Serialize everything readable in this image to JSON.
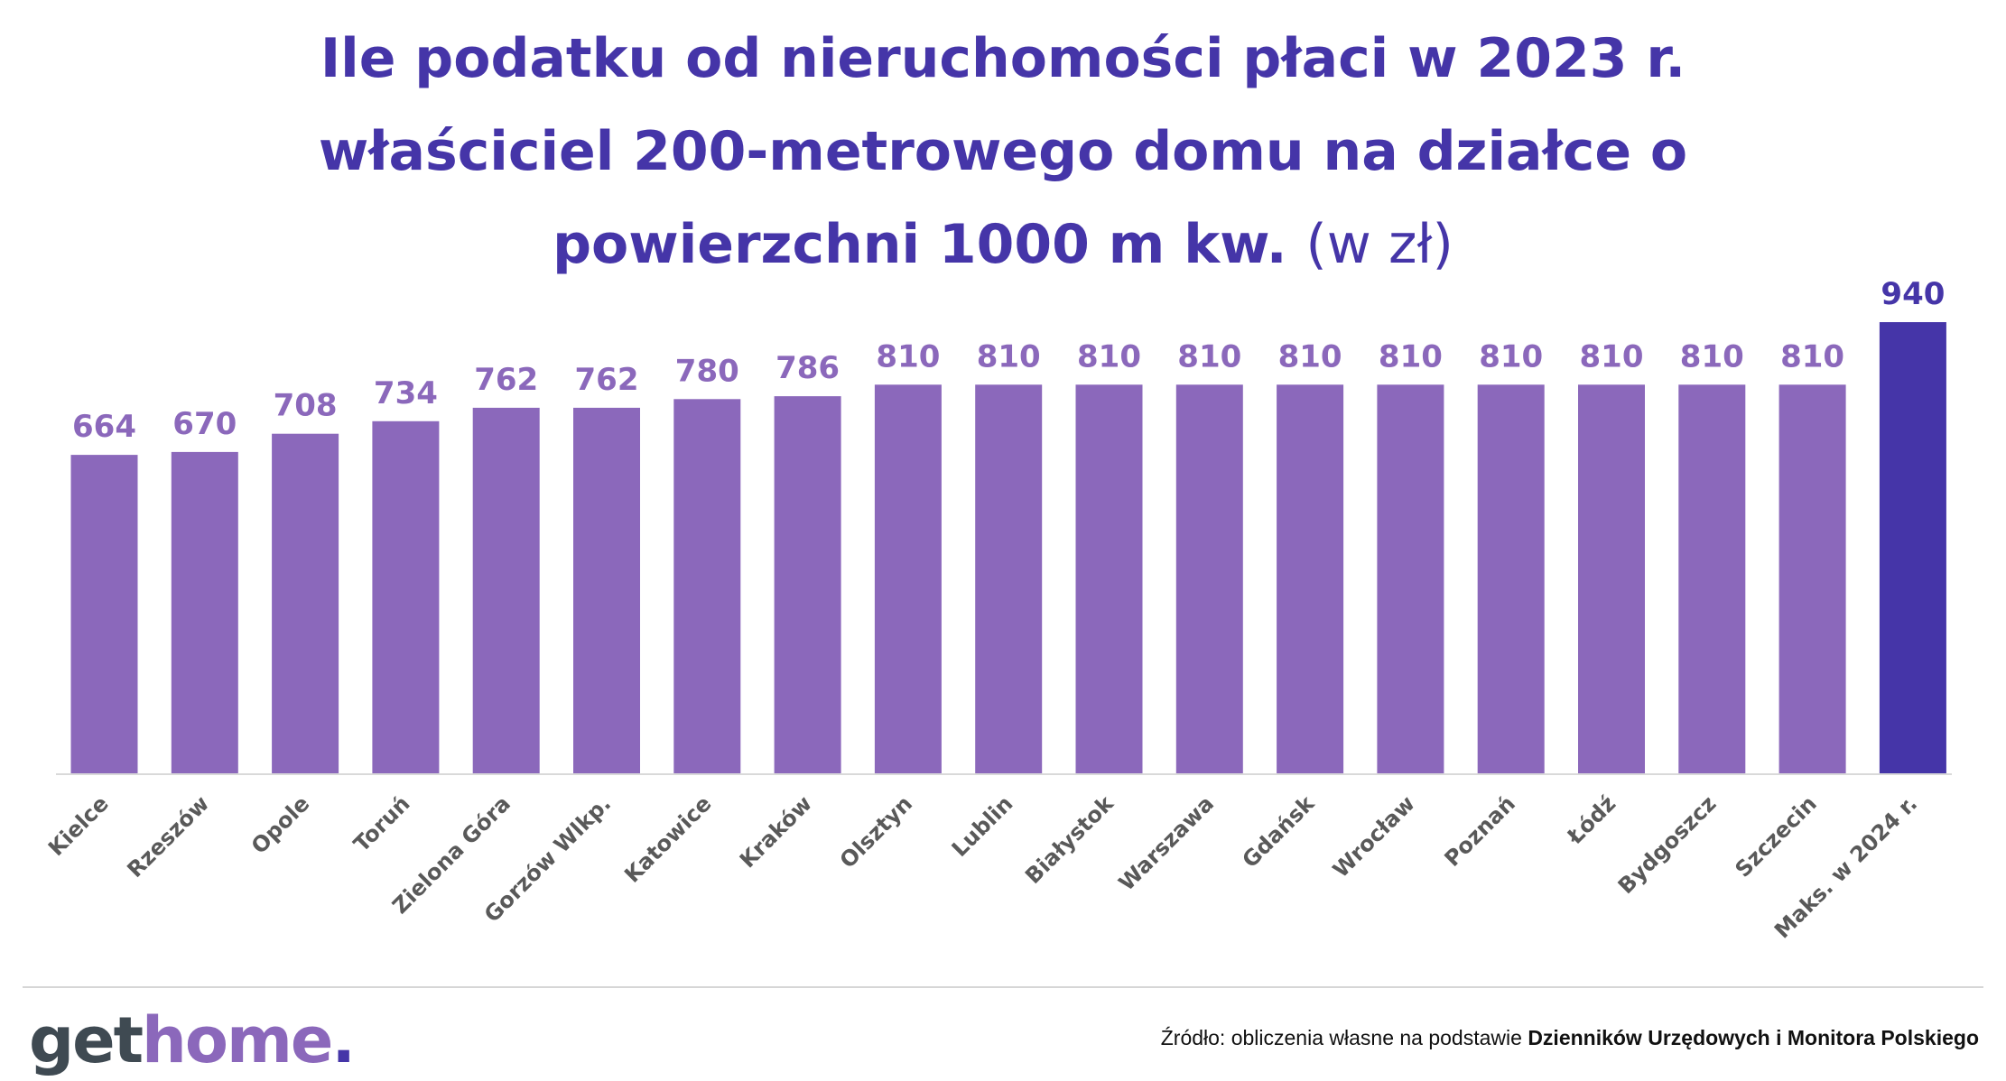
{
  "title": {
    "line1": "Ile podatku od nieruchomości płaci w 2023 r.",
    "line2": "właściciel 200-metrowego domu na działce o",
    "line3": "powierzchni 1000 m kw.",
    "unit": "(w zł)"
  },
  "logo": {
    "get": "get",
    "home": "home",
    "dot": "."
  },
  "source": {
    "prefix": "Źródło: obliczenia własne na podstawie ",
    "bold": "Dzienników Urzędowych i Monitora Polskiego"
  },
  "colors": {
    "title": "#4535a8",
    "bar": "#8b68bb",
    "bar_highlight": "#4535a8",
    "value_label": "#8b68bb",
    "value_label_highlight": "#4535a8",
    "category_label": "#595959"
  },
  "chart_data": {
    "type": "bar",
    "title": "Ile podatku od nieruchomości płaci w 2023 r. właściciel 200-metrowego domu na działce o powierzchni 1000 m kw. (w zł)",
    "categories": [
      "Kielce",
      "Rzeszów",
      "Opole",
      "Toruń",
      "Zielona Góra",
      "Gorzów Wlkp.",
      "Katowice",
      "Kraków",
      "Olsztyn",
      "Lublin",
      "Białystok",
      "Warszawa",
      "Gdańsk",
      "Wrocław",
      "Poznań",
      "Łódź",
      "Bydgoszcz",
      "Szczecin",
      "Maks. w 2024 r."
    ],
    "values": [
      664,
      670,
      708,
      734,
      762,
      762,
      780,
      786,
      810,
      810,
      810,
      810,
      810,
      810,
      810,
      810,
      810,
      810,
      940
    ],
    "highlight_index": 18,
    "ylim": [
      0,
      940
    ],
    "grid": false,
    "legend": "none",
    "data_labels": true
  }
}
